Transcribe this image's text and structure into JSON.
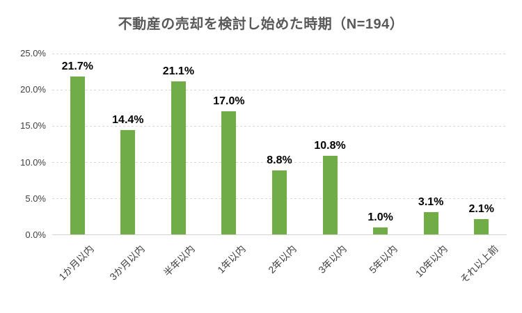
{
  "title": "不動産の売却を検討し始めた時期（N=194）",
  "colors": {
    "bar": "#70AD47",
    "title": "#595959",
    "gridline": "#D9D9D9",
    "axis_line": "#D2D2D2",
    "tick_label": "#404040",
    "data_label": "#000000",
    "background": "#FFFFFF"
  },
  "chart_data": {
    "type": "bar",
    "title": "不動産の売却を検討し始めた時期（N=194）",
    "categories": [
      "1か月以内",
      "3か月以内",
      "半年以内",
      "1年以内",
      "2年以内",
      "3年以内",
      "5年以内",
      "10年以内",
      "それ以上前"
    ],
    "values": [
      21.7,
      14.4,
      21.1,
      17.0,
      8.8,
      10.8,
      1.0,
      3.1,
      2.1
    ],
    "value_labels": [
      "21.7%",
      "14.4%",
      "21.1%",
      "17.0%",
      "8.8%",
      "10.8%",
      "1.0%",
      "3.1%",
      "2.1%"
    ],
    "xlabel": "",
    "ylabel": "",
    "ylim": [
      0,
      25
    ],
    "yticks": [
      "0.0%",
      "5.0%",
      "10.0%",
      "15.0%",
      "20.0%",
      "25.0%"
    ],
    "grid": "horizontal-dashed",
    "legend": "none",
    "n": 194
  }
}
